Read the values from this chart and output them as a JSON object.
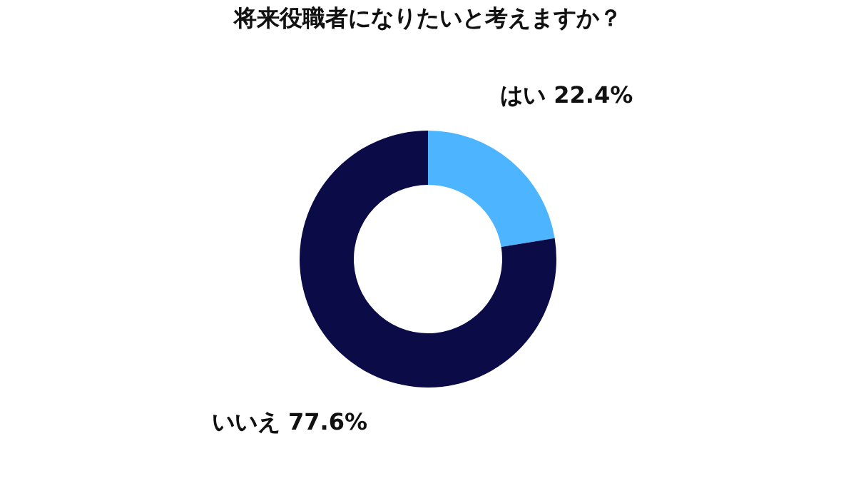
{
  "chart_data": {
    "type": "donut",
    "title": "将来役職者になりたいと考えますか？",
    "categories": [
      "はい",
      "いいえ"
    ],
    "values": [
      22.4,
      77.6
    ],
    "value_labels": [
      "22.4%",
      "77.6%"
    ],
    "colors": [
      "#4db4ff",
      "#0b0b48"
    ],
    "legend": false
  }
}
